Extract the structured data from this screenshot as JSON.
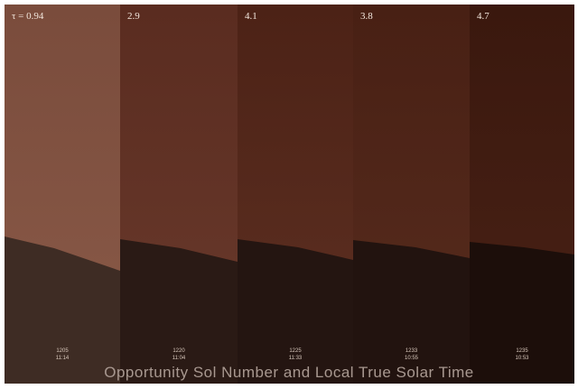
{
  "panels": [
    {
      "tau": "τ = 0.94",
      "sol": "1205",
      "time": "11:14"
    },
    {
      "tau": "2.9",
      "sol": "1220",
      "time": "11:04"
    },
    {
      "tau": "4.1",
      "sol": "1225",
      "time": "11:33"
    },
    {
      "tau": "3.8",
      "sol": "1233",
      "time": "10:55"
    },
    {
      "tau": "4.7",
      "sol": "1235",
      "time": "10:53"
    }
  ],
  "caption": "Opportunity Sol Number and Local True Solar Time"
}
